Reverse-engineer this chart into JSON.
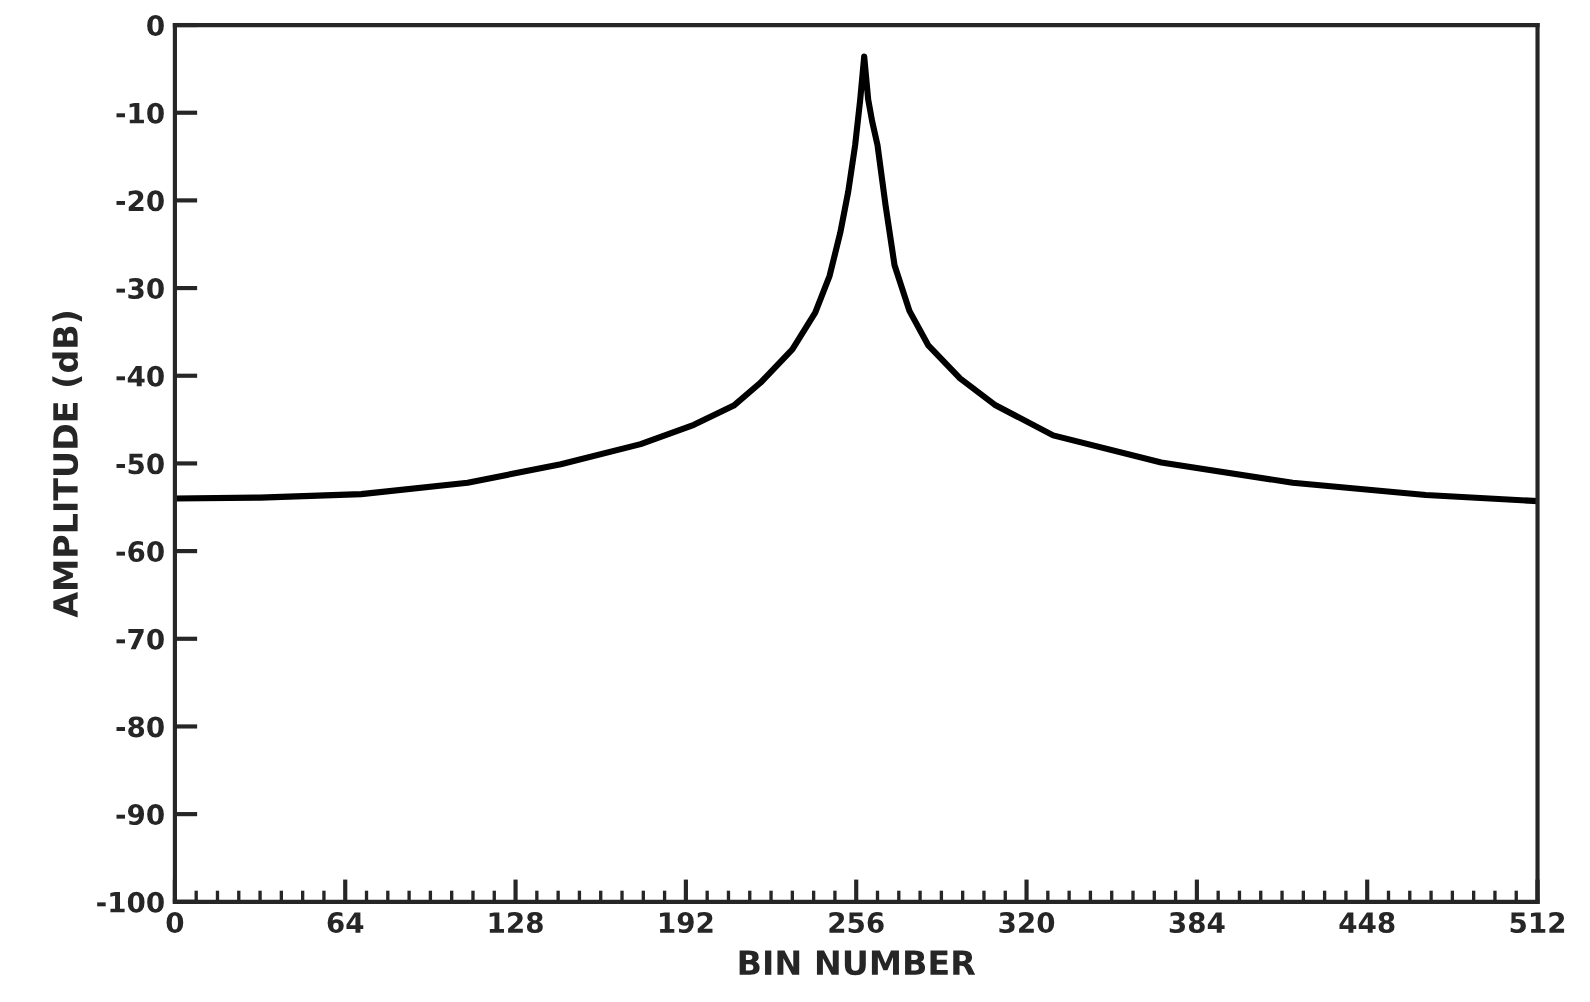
{
  "chart_data": {
    "type": "line",
    "xlabel": "BIN NUMBER",
    "ylabel": "AMPLITUDE (dB)",
    "x": [
      0,
      32,
      70,
      110,
      145,
      175,
      195,
      210,
      220,
      232,
      240.6,
      246,
      250,
      253,
      255.6,
      257.5,
      259,
      260.5,
      262,
      264,
      267,
      270.4,
      276,
      283,
      295,
      308,
      330,
      370.6,
      420,
      470,
      512
    ],
    "series": [
      {
        "color": "#000000",
        "values": [
          -54,
          -53.9,
          -53.5,
          -52.2,
          -50.1,
          -47.8,
          -45.6,
          -43.4,
          -40.8,
          -37,
          -32.8,
          -28.6,
          -23.7,
          -19,
          -13.7,
          -8.5,
          -3.6,
          -8.5,
          -11,
          -13.7,
          -20.5,
          -27.4,
          -32.6,
          -36.5,
          -40.3,
          -43.3,
          -46.8,
          -49.9,
          -52.2,
          -53.6,
          -54.3
        ]
      }
    ],
    "xlim": [
      0,
      512
    ],
    "ylim": [
      -100,
      0
    ],
    "xticks": [
      0,
      {
        "value": 8,
        "label": null
      },
      {
        "value": 16,
        "label": null
      },
      {
        "value": 24,
        "label": null
      },
      {
        "value": 32,
        "label": null
      },
      {
        "value": 40,
        "label": null
      },
      {
        "value": 48,
        "label": null
      },
      {
        "value": 56,
        "label": null
      },
      64,
      {
        "value": 72,
        "label": null
      },
      {
        "value": 80,
        "label": null
      },
      {
        "value": 88,
        "label": null
      },
      {
        "value": 96,
        "label": null
      },
      {
        "value": 104,
        "label": null
      },
      {
        "value": 112,
        "label": null
      },
      {
        "value": 120,
        "label": null
      },
      128,
      {
        "value": 136,
        "label": null
      },
      {
        "value": 144,
        "label": null
      },
      {
        "value": 152,
        "label": null
      },
      {
        "value": 160,
        "label": null
      },
      {
        "value": 168,
        "label": null
      },
      {
        "value": 176,
        "label": null
      },
      {
        "value": 184,
        "label": null
      },
      192,
      {
        "value": 200,
        "label": null
      },
      {
        "value": 208,
        "label": null
      },
      {
        "value": 216,
        "label": null
      },
      {
        "value": 224,
        "label": null
      },
      {
        "value": 232,
        "label": null
      },
      {
        "value": 240,
        "label": null
      },
      {
        "value": 248,
        "label": null
      },
      256,
      {
        "value": 264,
        "label": null
      },
      {
        "value": 272,
        "label": null
      },
      {
        "value": 280,
        "label": null
      },
      {
        "value": 288,
        "label": null
      },
      {
        "value": 296,
        "label": null
      },
      {
        "value": 304,
        "label": null
      },
      {
        "value": 312,
        "label": null
      },
      320,
      {
        "value": 328,
        "label": null
      },
      {
        "value": 336,
        "label": null
      },
      {
        "value": 344,
        "label": null
      },
      {
        "value": 352,
        "label": null
      },
      {
        "value": 360,
        "label": null
      },
      {
        "value": 368,
        "label": null
      },
      {
        "value": 376,
        "label": null
      },
      384,
      {
        "value": 392,
        "label": null
      },
      {
        "value": 400,
        "label": null
      },
      {
        "value": 408,
        "label": null
      },
      {
        "value": 416,
        "label": null
      },
      {
        "value": 424,
        "label": null
      },
      {
        "value": 432,
        "label": null
      },
      {
        "value": 440,
        "label": null
      },
      448,
      {
        "value": 456,
        "label": null
      },
      {
        "value": 464,
        "label": null
      },
      {
        "value": 472,
        "label": null
      },
      {
        "value": 480,
        "label": null
      },
      {
        "value": 488,
        "label": null
      },
      {
        "value": 496,
        "label": null
      },
      {
        "value": 504,
        "label": null
      },
      512
    ],
    "yticks": [
      -100,
      -90,
      -80,
      -70,
      -60,
      -50,
      -40,
      -30,
      -20,
      -10,
      0
    ],
    "grid": false,
    "legend": false,
    "marker": "none",
    "line_style": "solid"
  }
}
